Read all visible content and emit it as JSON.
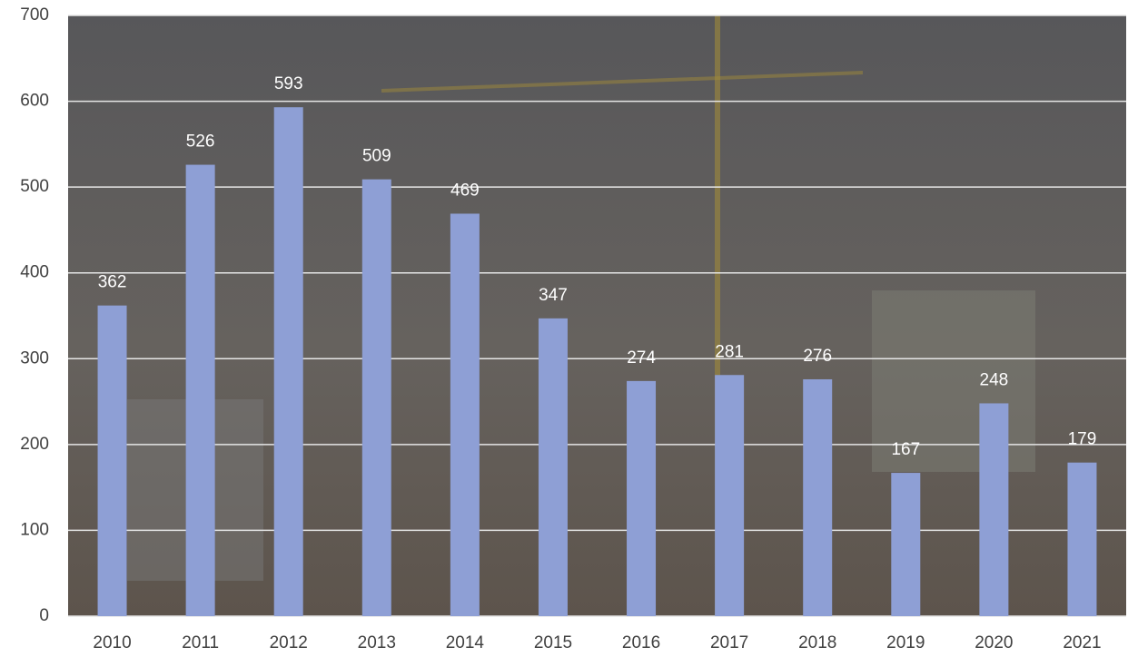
{
  "chart_data": {
    "type": "bar",
    "categories": [
      "2010",
      "2011",
      "2012",
      "2013",
      "2014",
      "2015",
      "2016",
      "2017",
      "2018",
      "2019",
      "2020",
      "2021"
    ],
    "values": [
      362,
      526,
      593,
      509,
      469,
      347,
      274,
      281,
      276,
      167,
      248,
      179
    ],
    "color": "#8e9fd5",
    "ylim": [
      0,
      700
    ],
    "yticks": [
      0,
      100,
      200,
      300,
      400,
      500,
      600,
      700
    ],
    "grid": true
  }
}
